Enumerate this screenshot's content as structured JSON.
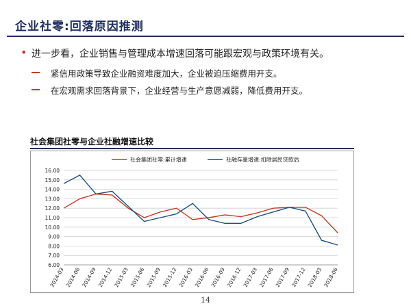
{
  "header": {
    "title": "企业社零:回落原因推测"
  },
  "bullets": {
    "main": "进一步看，企业销售与管理成本增速回落可能跟宏观与政策环境有关。",
    "subs": [
      "紧信用政策导致企业融资难度加大，企业被迫压缩费用开支。",
      "在宏观需求回落背景下，企业经营与生产意愿减弱，降低费用开支。"
    ]
  },
  "colors": {
    "title": "#1f2d5c",
    "accent_red": "#c0392b",
    "series_red": "#c0392b",
    "series_blue": "#1f4e79"
  },
  "chart_data": {
    "type": "line",
    "title": "社会集团社零与企业社融增速比较",
    "x": [
      "2014-03",
      "2014-06",
      "2014-09",
      "2014-12",
      "2015-03",
      "2015-06",
      "2015-09",
      "2015-12",
      "2016-03",
      "2016-06",
      "2016-09",
      "2016-12",
      "2017-03",
      "2017-06",
      "2017-09",
      "2017-12",
      "2018-03",
      "2018-06"
    ],
    "series": [
      {
        "name": "社会集团社零:累计增速",
        "color": "#c0392b",
        "values": [
          12.0,
          13.0,
          13.5,
          13.4,
          12.0,
          11.0,
          11.6,
          12.0,
          10.8,
          11.0,
          11.3,
          11.1,
          11.5,
          12.0,
          12.1,
          12.1,
          11.2,
          9.4
        ]
      },
      {
        "name": "社融存量增速:扣除居民贷款后",
        "color": "#1f4e79",
        "values": [
          14.6,
          15.5,
          13.5,
          13.8,
          12.2,
          10.6,
          11.0,
          11.4,
          12.5,
          10.8,
          10.4,
          10.4,
          11.1,
          11.6,
          12.1,
          11.7,
          8.6,
          8.1
        ]
      }
    ],
    "yticks": [
      "16.00",
      "15.00",
      "14.00",
      "13.00",
      "12.00",
      "11.00",
      "10.00",
      "9.00",
      "8.00",
      "7.00",
      "6.00"
    ],
    "ylim": [
      6,
      16
    ],
    "grid": true,
    "legend": "top-center"
  },
  "page": {
    "number": "14"
  }
}
